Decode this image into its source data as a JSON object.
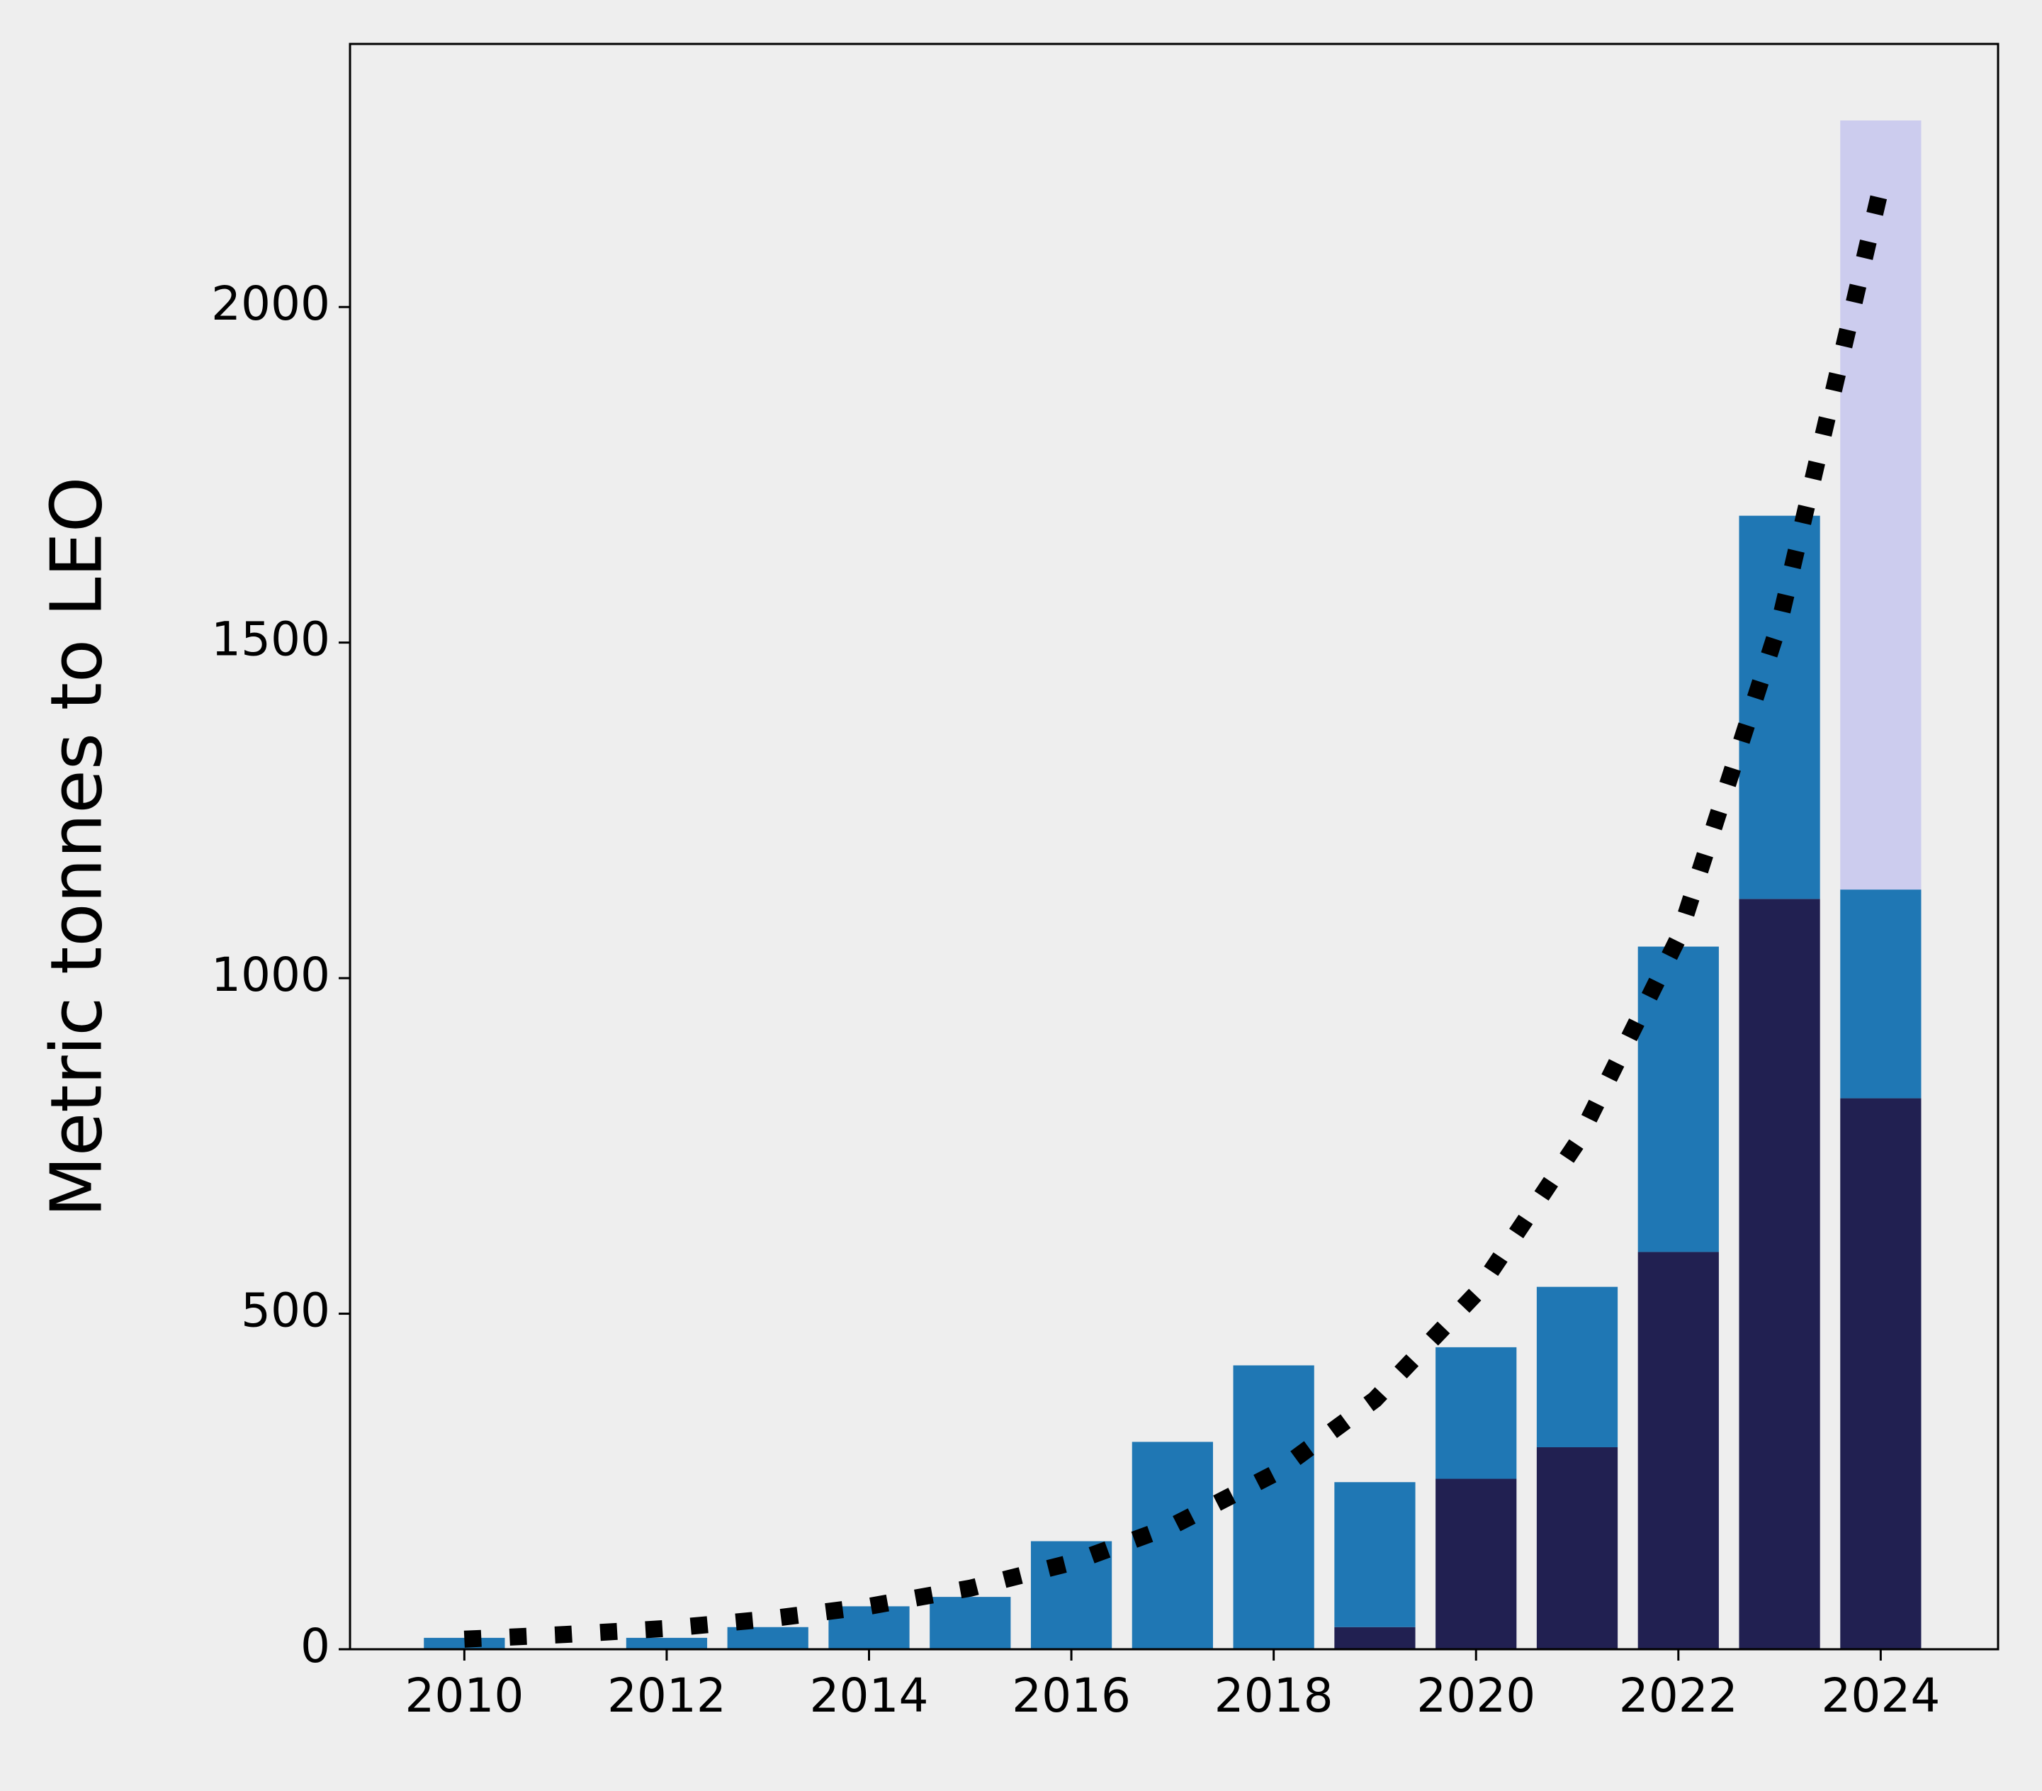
{
  "chart_data": {
    "type": "bar",
    "stacked": true,
    "y_label": "Metric tonnes to LEO",
    "x": [
      2010,
      2011,
      2012,
      2013,
      2014,
      2015,
      2016,
      2017,
      2018,
      2019,
      2020,
      2021,
      2022,
      2023,
      2024
    ],
    "series": [
      {
        "color": "#212051",
        "values": [
          0,
          0,
          0,
          0,
          0,
          0,
          0,
          0,
          0,
          33,
          254,
          301,
          592,
          1118,
          821
        ]
      },
      {
        "color": "#1f77b4",
        "values": [
          17,
          0,
          17,
          33,
          64,
          78,
          161,
          309,
          423,
          216,
          196,
          239,
          455,
          571,
          311
        ]
      },
      {
        "color": "#ccccee",
        "values": [
          0,
          0,
          0,
          0,
          0,
          0,
          0,
          0,
          0,
          0,
          0,
          0,
          0,
          0,
          1146
        ]
      }
    ],
    "trend": {
      "type": "line",
      "color": "#000000",
      "style": "dotted",
      "values": [
        15,
        22,
        31,
        45,
        64,
        91,
        129,
        184,
        261,
        372,
        530,
        755,
        1060,
        1530,
        2177
      ]
    },
    "xlim": [
      2008.87,
      2025.16
    ],
    "xticks": [
      2010,
      2012,
      2014,
      2016,
      2018,
      2020,
      2022,
      2024
    ],
    "ylim": [
      0,
      2392
    ],
    "yticks": [
      0,
      500,
      1000,
      1500,
      2000
    ],
    "bar_width": 0.8,
    "background": "#eeeeee",
    "grid": false
  }
}
